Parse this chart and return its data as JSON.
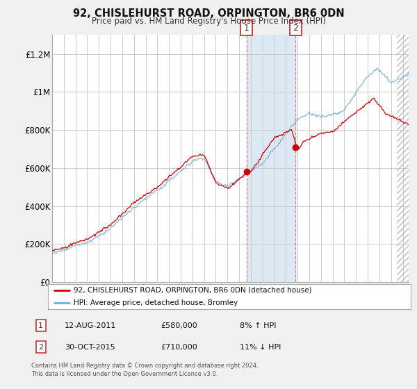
{
  "title": "92, CHISLEHURST ROAD, ORPINGTON, BR6 0DN",
  "subtitle": "Price paid vs. HM Land Registry's House Price Index (HPI)",
  "legend_label_red": "92, CHISLEHURST ROAD, ORPINGTON, BR6 0DN (detached house)",
  "legend_label_blue": "HPI: Average price, detached house, Bromley",
  "annotation1_date": "12-AUG-2011",
  "annotation1_price": "£580,000",
  "annotation1_hpi": "8% ↑ HPI",
  "annotation1_year": 2011.62,
  "annotation1_value": 580000,
  "annotation2_date": "30-OCT-2015",
  "annotation2_price": "£710,000",
  "annotation2_hpi": "11% ↓ HPI",
  "annotation2_year": 2015.83,
  "annotation2_value": 710000,
  "footnote1": "Contains HM Land Registry data © Crown copyright and database right 2024.",
  "footnote2": "This data is licensed under the Open Government Licence v3.0.",
  "bg_color": "#f0f0f0",
  "plot_bg_color": "#ffffff",
  "red_color": "#cc0000",
  "blue_color": "#7aadd4",
  "highlight_color": "#dce9f5",
  "hatch_color": "#cccccc",
  "ylim": [
    0,
    1300000
  ],
  "xlim_start": 1995,
  "xlim_end": 2025.5,
  "hatch_start": 2024.5,
  "yticks": [
    0,
    200000,
    400000,
    600000,
    800000,
    1000000,
    1200000
  ],
  "ytick_labels": [
    "£0",
    "£200K",
    "£400K",
    "£600K",
    "£800K",
    "£1M",
    "£1.2M"
  ]
}
